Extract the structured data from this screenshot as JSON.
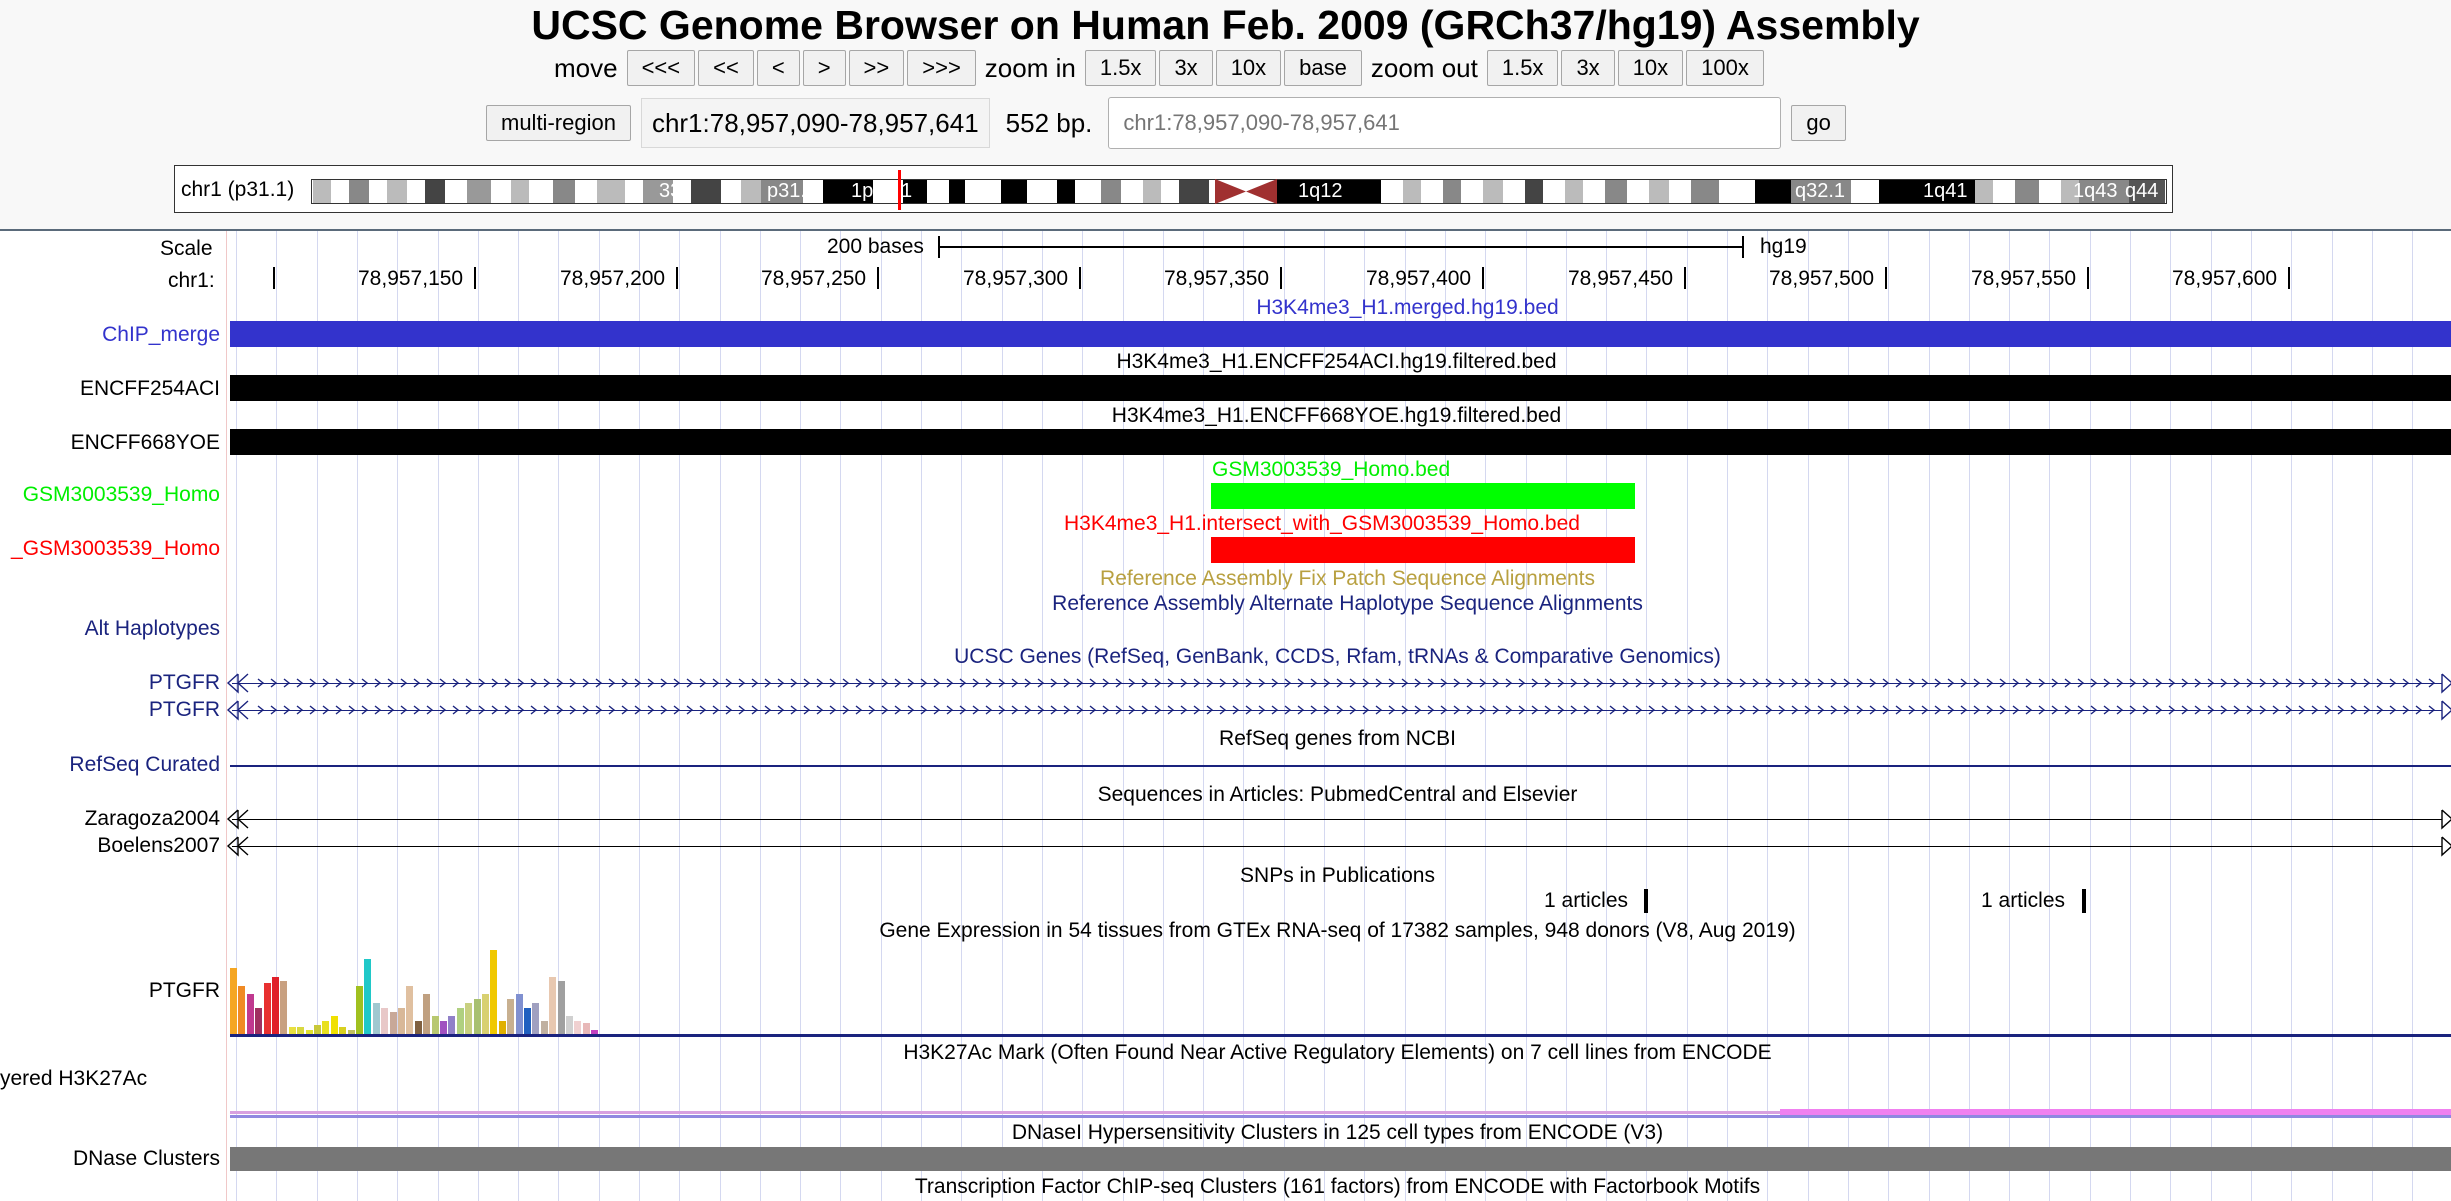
{
  "title": "UCSC Genome Browser on Human Feb. 2009 (GRCh37/hg19) Assembly",
  "nav": {
    "move_label": "move",
    "move_buttons": [
      "<<<",
      "<<",
      "<",
      ">",
      ">>",
      ">>>"
    ],
    "zoom_in_label": "zoom in",
    "zoom_in_buttons": [
      "1.5x",
      "3x",
      "10x",
      "base"
    ],
    "zoom_out_label": "zoom out",
    "zoom_out_buttons": [
      "1.5x",
      "3x",
      "10x",
      "100x"
    ]
  },
  "position": {
    "multi_region_label": "multi-region",
    "current": "chr1:78,957,090-78,957,641",
    "size": "552 bp.",
    "input_placeholder": "chr1:78,957,090-78,957,641",
    "go_label": "go"
  },
  "ideogram": {
    "chrom_label": "chr1 (p31.1)",
    "band_labels": [
      "33",
      "p31.3",
      "1p31.1",
      "1q12",
      "q32.1",
      "1q41",
      "1q43",
      "q44"
    ]
  },
  "scale": {
    "scale_label": "Scale",
    "chrom_label": "chr1:",
    "bar_label": "200 bases",
    "assembly": "hg19",
    "ticks": [
      "78,957,150",
      "78,957,200",
      "78,957,250",
      "78,957,300",
      "78,957,350",
      "78,957,400",
      "78,957,450",
      "78,957,500",
      "78,957,550",
      "78,957,600"
    ]
  },
  "tracks": {
    "chip_merge": {
      "label": "ChIP_merge",
      "title": "H3K4me3_H1.merged.hg19.bed",
      "color": "#3333cc"
    },
    "encff254": {
      "label": "ENCFF254ACI",
      "title": "H3K4me3_H1.ENCFF254ACI.hg19.filtered.bed",
      "color": "#000000"
    },
    "encff668": {
      "label": "ENCFF668YOE",
      "title": "H3K4me3_H1.ENCFF668YOE.hg19.filtered.bed",
      "color": "#000000"
    },
    "gsm": {
      "label": "GSM3003539_Homo",
      "title": "GSM3003539_Homo.bed",
      "color": "#00ff00"
    },
    "intersect": {
      "label": "_GSM3003539_Homo",
      "title": "H3K4me3_H1.intersect_with_GSM3003539_Homo.bed",
      "color": "#ff0000"
    },
    "fix_patch": {
      "title": "Reference Assembly Fix Patch Sequence Alignments",
      "color": "#b8a040"
    },
    "alt_hap": {
      "label": "Alt Haplotypes",
      "title": "Reference Assembly Alternate Haplotype Sequence Alignments",
      "color": "#1a237e"
    },
    "ucsc_genes": {
      "title": "UCSC Genes (RefSeq, GenBank, CCDS, Rfam, tRNAs & Comparative Genomics)",
      "gene1": "PTGFR",
      "gene2": "PTGFR",
      "color": "#1a237e"
    },
    "refseq": {
      "title": "RefSeq genes from NCBI",
      "label": "RefSeq Curated",
      "color": "#1a237e"
    },
    "pubs": {
      "title": "Sequences in Articles: PubmedCentral and Elsevier",
      "item1": "Zaragoza2004",
      "item2": "Boelens2007"
    },
    "snp_pubs": {
      "title": "SNPs in Publications",
      "item1": "1 articles",
      "item2": "1 articles"
    },
    "gtex": {
      "title": "Gene Expression in 54 tissues from GTEx RNA-seq of 17382 samples, 948 donors (V8, Aug 2019)",
      "label": "PTGFR"
    },
    "h3k27ac": {
      "title": "H3K27Ac Mark (Often Found Near Active Regulatory Elements) on 7 cell lines from ENCODE",
      "label": "yered H3K27Ac"
    },
    "dnase": {
      "title": "DNaseI Hypersensitivity Clusters in 125 cell types from ENCODE (V3)",
      "label": "DNase Clusters",
      "color": "#777777"
    },
    "tfbs": {
      "title": "Transcription Factor ChIP-seq Clusters (161 factors) from ENCODE with Factorbook Motifs"
    }
  },
  "gtex_colors": [
    "#f5a623",
    "#f08a24",
    "#c0398f",
    "#a03060",
    "#e83030",
    "#e0202a",
    "#c8a080",
    "#e8e040",
    "#d8d840",
    "#e0e030",
    "#c8c838",
    "#e8e020",
    "#f0e000",
    "#d8d020",
    "#c0c060",
    "#a0c020",
    "#20c8c8",
    "#a0c8d0",
    "#e8c8c8",
    "#c8a898",
    "#d8b898",
    "#e0c0a0",
    "#806040",
    "#c0a080",
    "#b8c870",
    "#a050c0",
    "#9080c8",
    "#b0d080",
    "#c8d080",
    "#a8c070",
    "#d8d070",
    "#f0c800",
    "#e0b000",
    "#c8b090",
    "#8090d0",
    "#2060c0",
    "#a0a0c0",
    "#c0b0a0",
    "#e8c8b0",
    "#a0a0a0",
    "#d0d0d0",
    "#f0d0d0",
    "#e8b8b8",
    "#c040c0"
  ],
  "gtex_values": [
    0.75,
    0.55,
    0.45,
    0.3,
    0.58,
    0.65,
    0.6,
    0.08,
    0.08,
    0.05,
    0.1,
    0.15,
    0.2,
    0.08,
    0.05,
    0.55,
    0.85,
    0.35,
    0.3,
    0.25,
    0.3,
    0.55,
    0.15,
    0.45,
    0.2,
    0.15,
    0.2,
    0.3,
    0.35,
    0.4,
    0.45,
    0.95,
    0.15,
    0.4,
    0.45,
    0.3,
    0.35,
    0.15,
    0.65,
    0.6,
    0.2,
    0.15,
    0.12,
    0.05
  ]
}
